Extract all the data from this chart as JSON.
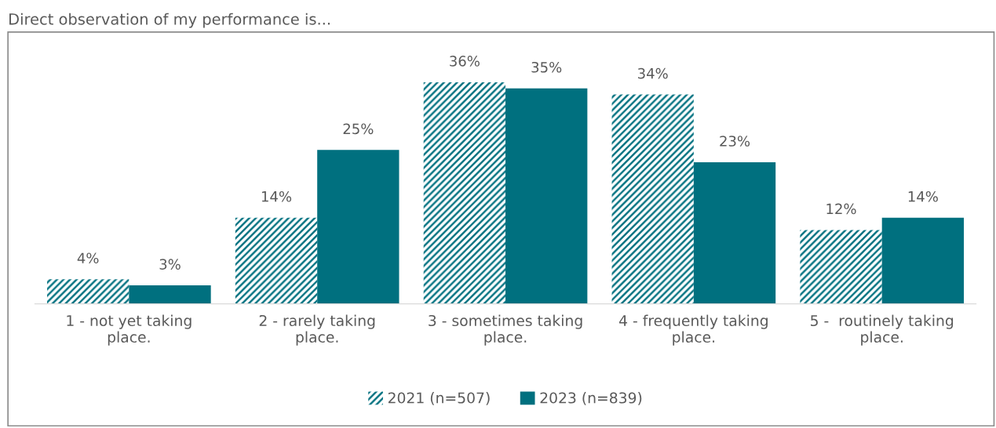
{
  "chart_data": {
    "type": "bar",
    "title": "Direct observation of my performance is...",
    "categories": [
      "1 - not yet taking place.",
      "2 - rarely taking place.",
      "3 - sometimes taking place.",
      "4 - frequently taking place.",
      "5 -  routinely taking place."
    ],
    "series": [
      {
        "name": "2021 (n=507)",
        "color": "#00707f",
        "values": [
          4,
          14,
          36,
          34,
          12
        ],
        "value_labels": [
          "4%",
          "14%",
          "36%",
          "34%",
          "12%"
        ]
      },
      {
        "name": "2023 (n=839)",
        "color": "#00707f",
        "values": [
          3,
          25,
          35,
          23,
          14
        ],
        "value_labels": [
          "3%",
          "25%",
          "35%",
          "23%",
          "14%"
        ]
      }
    ],
    "legend": "bottom",
    "grid": false
  }
}
